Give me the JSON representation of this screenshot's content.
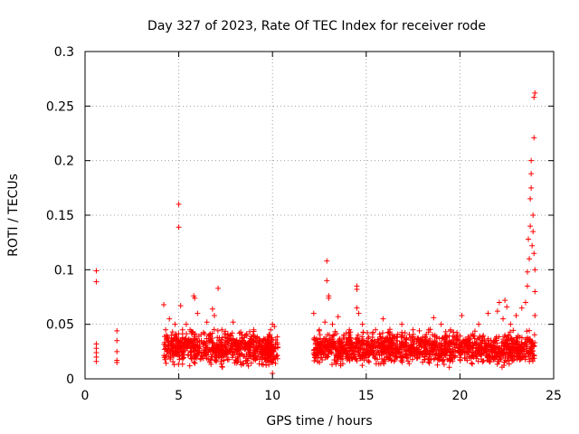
{
  "chart_data": {
    "type": "scatter",
    "title": "Day 327 of 2023, Rate Of TEC Index for receiver rode",
    "xlabel": "GPS time / hours",
    "ylabel": "ROTI / TECUs",
    "xlim": [
      0,
      25
    ],
    "ylim": [
      0,
      0.3
    ],
    "xticks": [
      0,
      5,
      10,
      15,
      20,
      25
    ],
    "xtick_labels": [
      "0",
      "5",
      "10",
      "15",
      "20",
      "25"
    ],
    "yticks": [
      0,
      0.05,
      0.1,
      0.15,
      0.2,
      0.25,
      0.3
    ],
    "ytick_labels": [
      "0",
      "0.05",
      "0.1",
      "0.15",
      "0.2",
      "0.25",
      "0.3"
    ],
    "grid": true,
    "marker": "+",
    "color": "#ff0000",
    "series": [
      {
        "name": "ROTI",
        "points": [
          [
            0.6,
            0.099
          ],
          [
            0.6,
            0.089
          ],
          [
            0.6,
            0.032
          ],
          [
            0.6,
            0.028
          ],
          [
            0.6,
            0.024
          ],
          [
            0.6,
            0.02
          ],
          [
            0.6,
            0.016
          ],
          [
            1.7,
            0.044
          ],
          [
            1.7,
            0.035
          ],
          [
            1.7,
            0.025
          ],
          [
            1.7,
            0.017
          ],
          [
            1.7,
            0.015
          ],
          [
            4.2,
            0.068
          ],
          [
            4.3,
            0.045
          ],
          [
            4.4,
            0.035
          ],
          [
            4.5,
            0.055
          ],
          [
            4.6,
            0.04
          ],
          [
            4.7,
            0.03
          ],
          [
            4.8,
            0.05
          ],
          [
            5.0,
            0.16
          ],
          [
            5.0,
            0.139
          ],
          [
            5.1,
            0.067
          ],
          [
            5.2,
            0.045
          ],
          [
            5.4,
            0.05
          ],
          [
            5.5,
            0.03
          ],
          [
            5.6,
            0.045
          ],
          [
            5.8,
            0.076
          ],
          [
            5.85,
            0.074
          ],
          [
            6.0,
            0.06
          ],
          [
            6.2,
            0.035
          ],
          [
            6.5,
            0.052
          ],
          [
            6.8,
            0.064
          ],
          [
            6.9,
            0.058
          ],
          [
            7.1,
            0.083
          ],
          [
            7.3,
            0.045
          ],
          [
            7.6,
            0.04
          ],
          [
            7.9,
            0.052
          ],
          [
            8.2,
            0.03
          ],
          [
            8.5,
            0.038
          ],
          [
            8.8,
            0.035
          ],
          [
            9.0,
            0.045
          ],
          [
            9.3,
            0.03
          ],
          [
            9.9,
            0.045
          ],
          [
            10.0,
            0.05
          ],
          [
            10.1,
            0.048
          ],
          [
            10.0,
            0.03
          ],
          [
            10.0,
            0.005
          ],
          [
            12.2,
            0.06
          ],
          [
            12.5,
            0.045
          ],
          [
            12.8,
            0.052
          ],
          [
            12.9,
            0.108
          ],
          [
            12.9,
            0.09
          ],
          [
            13.0,
            0.076
          ],
          [
            13.0,
            0.074
          ],
          [
            13.2,
            0.05
          ],
          [
            13.5,
            0.057
          ],
          [
            13.8,
            0.04
          ],
          [
            14.1,
            0.045
          ],
          [
            14.5,
            0.085
          ],
          [
            14.5,
            0.082
          ],
          [
            14.5,
            0.065
          ],
          [
            14.6,
            0.06
          ],
          [
            14.8,
            0.05
          ],
          [
            15.0,
            0.035
          ],
          [
            15.5,
            0.045
          ],
          [
            15.9,
            0.055
          ],
          [
            16.4,
            0.04
          ],
          [
            16.9,
            0.05
          ],
          [
            17.5,
            0.045
          ],
          [
            18.0,
            0.035
          ],
          [
            18.6,
            0.056
          ],
          [
            19.0,
            0.05
          ],
          [
            19.5,
            0.045
          ],
          [
            20.1,
            0.058
          ],
          [
            20.6,
            0.04
          ],
          [
            21.0,
            0.05
          ],
          [
            21.5,
            0.06
          ],
          [
            22.0,
            0.062
          ],
          [
            22.1,
            0.07
          ],
          [
            22.3,
            0.055
          ],
          [
            22.4,
            0.072
          ],
          [
            22.5,
            0.066
          ],
          [
            22.7,
            0.05
          ],
          [
            23.0,
            0.058
          ],
          [
            23.3,
            0.065
          ],
          [
            23.5,
            0.07
          ],
          [
            23.6,
            0.085
          ],
          [
            23.6,
            0.098
          ],
          [
            23.65,
            0.128
          ],
          [
            23.7,
            0.11
          ],
          [
            23.75,
            0.14
          ],
          [
            23.75,
            0.165
          ],
          [
            23.8,
            0.175
          ],
          [
            23.8,
            0.188
          ],
          [
            23.8,
            0.2
          ],
          [
            23.85,
            0.122
          ],
          [
            23.9,
            0.135
          ],
          [
            23.9,
            0.15
          ],
          [
            23.95,
            0.115
          ],
          [
            24.0,
            0.1
          ],
          [
            24.0,
            0.08
          ],
          [
            24.0,
            0.058
          ],
          [
            23.95,
            0.221
          ],
          [
            23.95,
            0.258
          ],
          [
            24.0,
            0.262
          ]
        ],
        "dense_segments": [
          {
            "x": [
              4.2,
              10.0
            ],
            "y": [
              0.008,
              0.048
            ]
          },
          {
            "x": [
              9.6,
              10.3
            ],
            "y": [
              0.005,
              0.045
            ]
          },
          {
            "x": [
              12.2,
              24.0
            ],
            "y": [
              0.008,
              0.048
            ]
          }
        ]
      }
    ]
  }
}
